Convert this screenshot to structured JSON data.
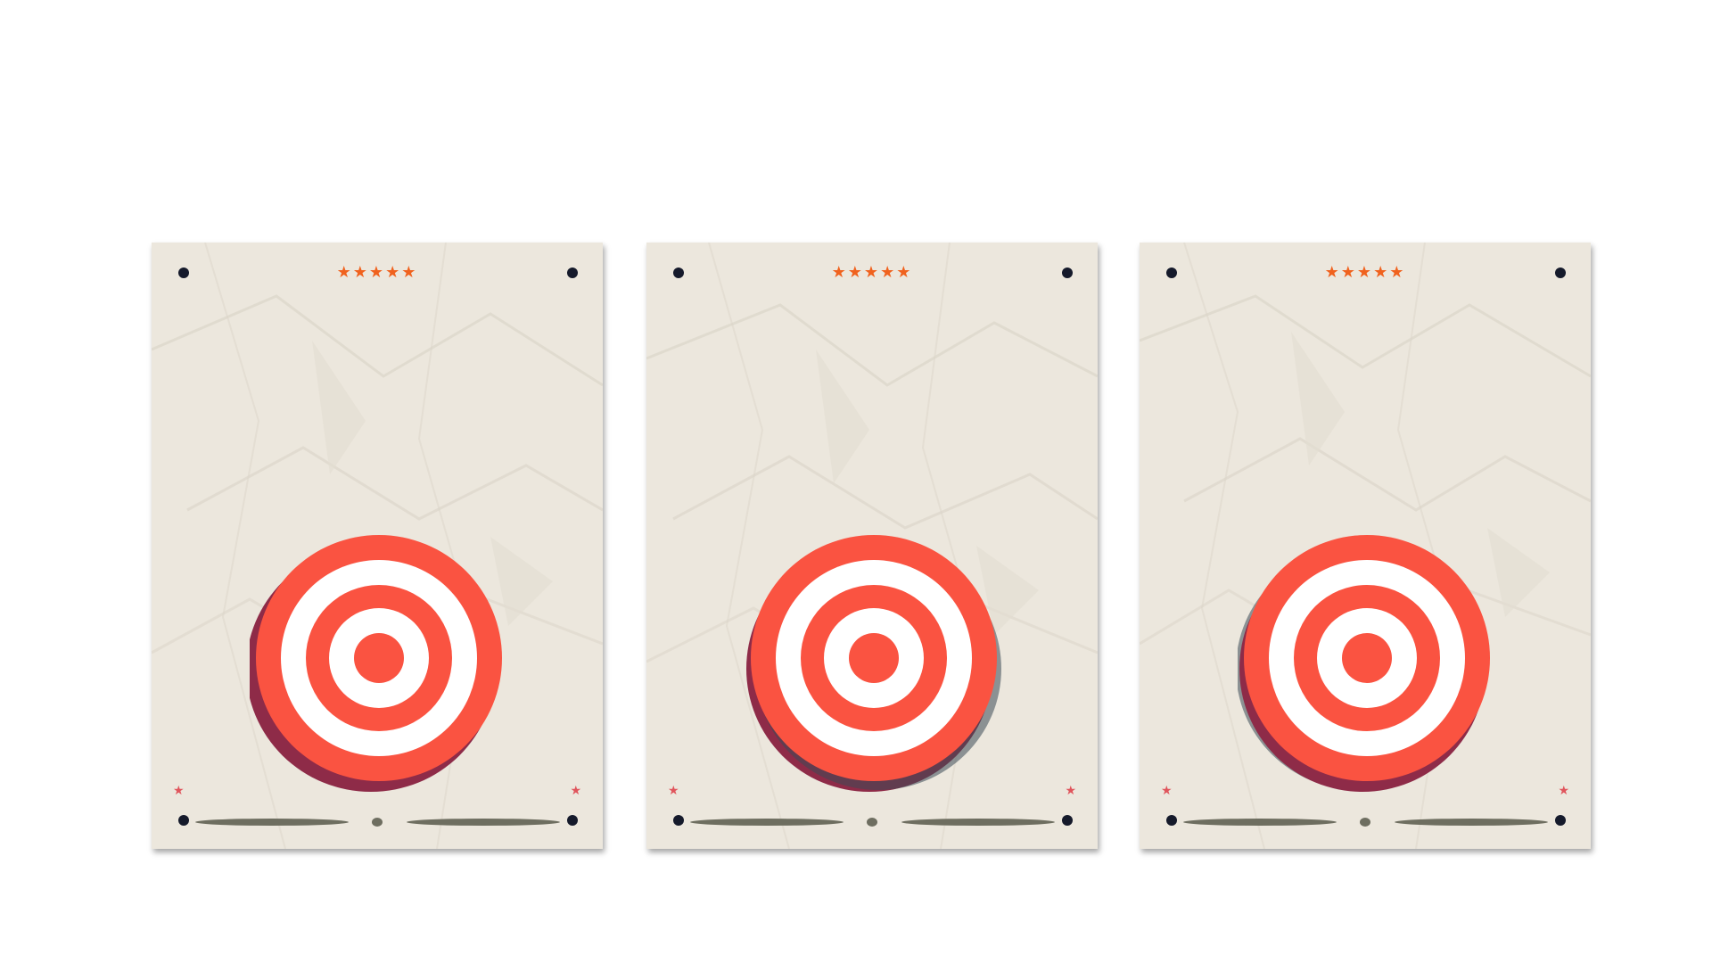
{
  "posters": [
    {
      "rating": "★★★★★",
      "corner_star_left": "★",
      "corner_star_right": "★",
      "icon": "bullseye-target-icon"
    },
    {
      "rating": "★★★★★",
      "corner_star_left": "★",
      "corner_star_right": "★",
      "icon": "bullseye-target-icon"
    },
    {
      "rating": "★★★★★",
      "corner_star_left": "★",
      "corner_star_right": "★",
      "icon": "bullseye-target-icon"
    }
  ],
  "colors": {
    "paper": "#ece7dd",
    "ring_red": "#fa5341",
    "ring_white": "#ffffff",
    "shadow_plum": "#8e2b48",
    "pin": "#151a2b",
    "star_orange": "#f0621e",
    "corner_star": "#e0555c"
  }
}
